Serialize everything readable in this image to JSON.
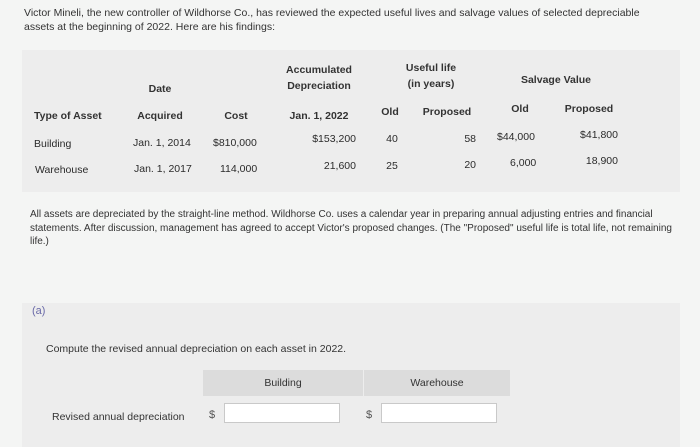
{
  "intro": "Victor Mineli, the new controller of Wildhorse Co., has reviewed the expected useful lives and salvage values of selected depreciable assets at the beginning of 2022. Here are his findings:",
  "table": {
    "headers": {
      "type_of_asset": "Type of Asset",
      "date_line1": "Date",
      "date_line2": "Acquired",
      "cost": "Cost",
      "accum_line1": "Accumulated",
      "accum_line2": "Depreciation",
      "accum_line3": "Jan. 1, 2022",
      "useful_line1": "Useful life",
      "useful_line2": "(in years)",
      "useful_old": "Old",
      "useful_proposed": "Proposed",
      "salvage": "Salvage Value",
      "salvage_old": "Old",
      "salvage_proposed": "Proposed"
    },
    "rows": [
      {
        "type": "Building",
        "date": "Jan. 1, 2014",
        "cost": "$810,000",
        "accum": "$153,200",
        "life_old": "40",
        "life_proposed": "58",
        "salvage_old": "$44,000",
        "salvage_proposed": "$41,800"
      },
      {
        "type": "Warehouse",
        "date": "Jan. 1, 2017",
        "cost": "114,000",
        "accum": "21,600",
        "life_old": "25",
        "life_proposed": "20",
        "salvage_old": "6,000",
        "salvage_proposed": "18,900"
      }
    ]
  },
  "notes": "All assets are depreciated by the straight-line method. Wildhorse Co. uses a calendar year in preparing annual adjusting entries and financial statements. After discussion, management has agreed to accept Victor's proposed changes. (The \"Proposed\" useful life is total life, not remaining life.)",
  "part": {
    "label": "(a)",
    "instruction": "Compute the revised annual depreciation on each asset in 2022.",
    "col_building": "Building",
    "col_warehouse": "Warehouse",
    "row_label": "Revised annual depreciation",
    "currency": "$",
    "building_value": "",
    "warehouse_value": ""
  }
}
